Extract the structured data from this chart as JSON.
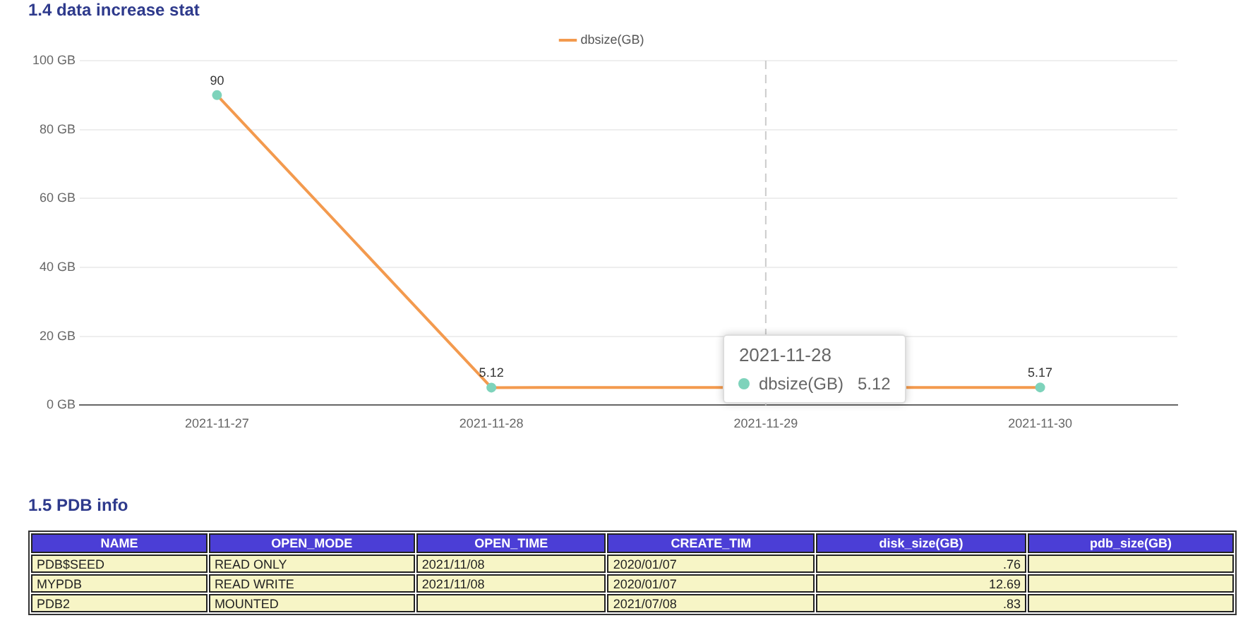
{
  "chart_data": [
    {
      "type": "line",
      "title": "1.4 data increase stat",
      "categories": [
        "2021-11-27",
        "2021-11-28",
        "2021-11-29",
        "2021-11-30"
      ],
      "series": [
        {
          "name": "dbsize(GB)",
          "color": "#f39a4e",
          "values": [
            90,
            5.12,
            null,
            5.17
          ],
          "value_labels": [
            "90",
            "5.12",
            null,
            "5.17"
          ]
        }
      ],
      "ylim": [
        0,
        100
      ],
      "yticks": [
        {
          "value": 0,
          "label": "0 GB"
        },
        {
          "value": 20,
          "label": "20 GB"
        },
        {
          "value": 40,
          "label": "40 GB"
        },
        {
          "value": 60,
          "label": "60 GB"
        },
        {
          "value": 80,
          "label": "80 GB"
        },
        {
          "value": 100,
          "label": "100 GB"
        }
      ],
      "grid": "y",
      "legend": "top",
      "marker": "circle",
      "line_style": "solid",
      "ref_lines": [
        {
          "axis": "x",
          "value": "2021-11-29",
          "label": null,
          "color": "#cccccc",
          "line_style": "dashed"
        }
      ],
      "annotations": [
        "2021-11-28",
        "dbsize(GB)   5.12"
      ]
    },
    {
      "type": "other",
      "title": "1.5 PDB info",
      "categories": [
        "NAME",
        "OPEN_MODE",
        "OPEN_TIME",
        "CREATE_TIM",
        "disk_size(GB)",
        "pdb_size(GB)"
      ],
      "cell_labels": [
        [
          "PDB$SEED",
          "READ ONLY",
          "2021/11/08",
          "2020/01/07",
          ".76",
          null
        ],
        [
          "MYPDB",
          "READ WRITE",
          "2021/11/08",
          "2020/01/07",
          "12.69",
          null
        ],
        [
          "PDB2",
          "MOUNTED",
          null,
          "2021/07/08",
          ".83",
          null
        ]
      ]
    }
  ]
}
